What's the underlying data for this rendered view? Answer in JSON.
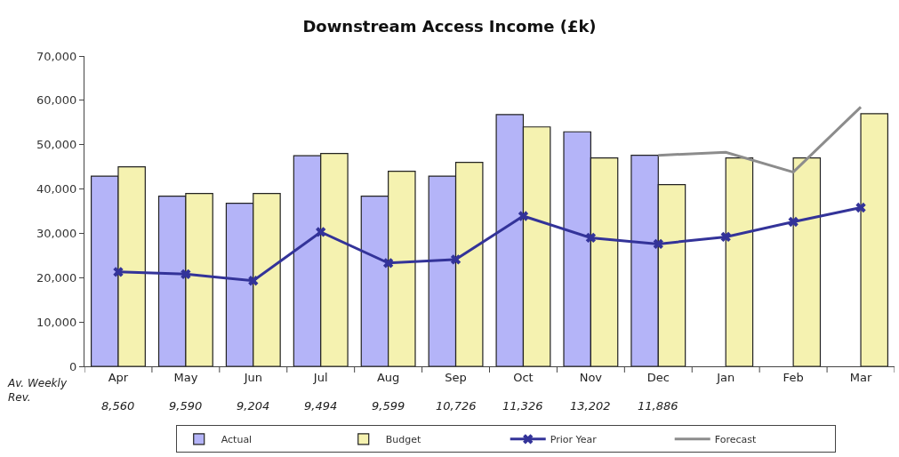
{
  "chart_data": {
    "type": "bar",
    "title": "Downstream Access Income (£k)",
    "categories": [
      "Apr",
      "May",
      "Jun",
      "Jul",
      "Aug",
      "Sep",
      "Oct",
      "Nov",
      "Dec",
      "Jan",
      "Feb",
      "Mar"
    ],
    "series": [
      {
        "name": "Actual",
        "color": "#b4b4f8",
        "values": [
          42900,
          38400,
          36800,
          47500,
          38400,
          42900,
          56800,
          52900,
          47600,
          null,
          null,
          null
        ]
      },
      {
        "name": "Budget",
        "color": "#f5f2b0",
        "values": [
          45000,
          39000,
          39000,
          48000,
          44000,
          46000,
          54000,
          47000,
          41000,
          47000,
          47000,
          57000
        ]
      },
      {
        "name": "Prior Year",
        "type": "line",
        "color": "#333399",
        "marker": "cross",
        "values": [
          21300,
          20800,
          19300,
          30300,
          23300,
          24100,
          33900,
          29000,
          27600,
          29200,
          32600,
          35800
        ]
      },
      {
        "name": "Forecast",
        "type": "line",
        "color": "#8c8c8c",
        "marker": "none",
        "values": [
          null,
          null,
          null,
          null,
          null,
          null,
          null,
          null,
          47600,
          48300,
          43800,
          58500
        ]
      }
    ],
    "ylim": [
      0,
      70000
    ],
    "yticks": [
      {
        "value": 0,
        "label": "0"
      },
      {
        "value": 10000,
        "label": "10,000"
      },
      {
        "value": 20000,
        "label": "20,000"
      },
      {
        "value": 30000,
        "label": "30,000"
      },
      {
        "value": 40000,
        "label": "40,000"
      },
      {
        "value": 50000,
        "label": "50,000"
      },
      {
        "value": 60000,
        "label": "60,000"
      },
      {
        "value": 70000,
        "label": "70,000"
      }
    ],
    "legend": "bottom",
    "annotations": [
      "Av. Weekly\nRev.",
      "8,560",
      "9,590",
      "9,204",
      "9,494",
      "9,599",
      "10,726",
      "11,326",
      "13,202",
      "11,886"
    ]
  }
}
